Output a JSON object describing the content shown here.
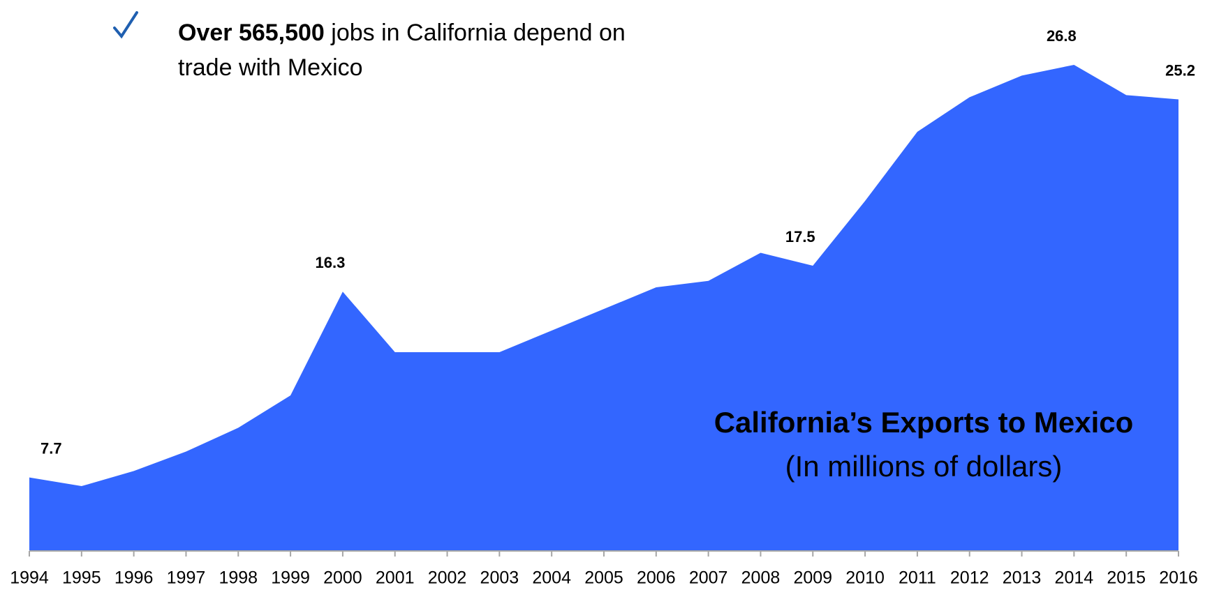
{
  "note": {
    "bold": "Over 565,500",
    "text": "jobs in California depend on trade with Mexico"
  },
  "chart_data": {
    "type": "area",
    "title": "California’s Exports to Mexico",
    "subtitle": "(In millions of dollars)",
    "categories": [
      "1994",
      "1995",
      "1996",
      "1997",
      "1998",
      "1999",
      "2000",
      "2001",
      "2002",
      "2003",
      "2004",
      "2005",
      "2006",
      "2007",
      "2008",
      "2009",
      "2010",
      "2011",
      "2012",
      "2013",
      "2014",
      "2015",
      "2016"
    ],
    "values": [
      7.7,
      7.3,
      8.0,
      8.9,
      10.0,
      11.5,
      16.3,
      13.5,
      13.5,
      13.5,
      14.5,
      15.5,
      16.5,
      16.8,
      18.1,
      17.5,
      20.5,
      23.7,
      25.3,
      26.3,
      26.8,
      25.4,
      25.2
    ],
    "value_labels": [
      "7.7",
      null,
      null,
      null,
      null,
      null,
      "16.3",
      null,
      null,
      null,
      null,
      null,
      null,
      null,
      null,
      "17.5",
      null,
      null,
      null,
      null,
      "26.8",
      null,
      "25.2"
    ],
    "color": "#3366ff",
    "ylim": [
      4.3,
      29.8
    ]
  }
}
